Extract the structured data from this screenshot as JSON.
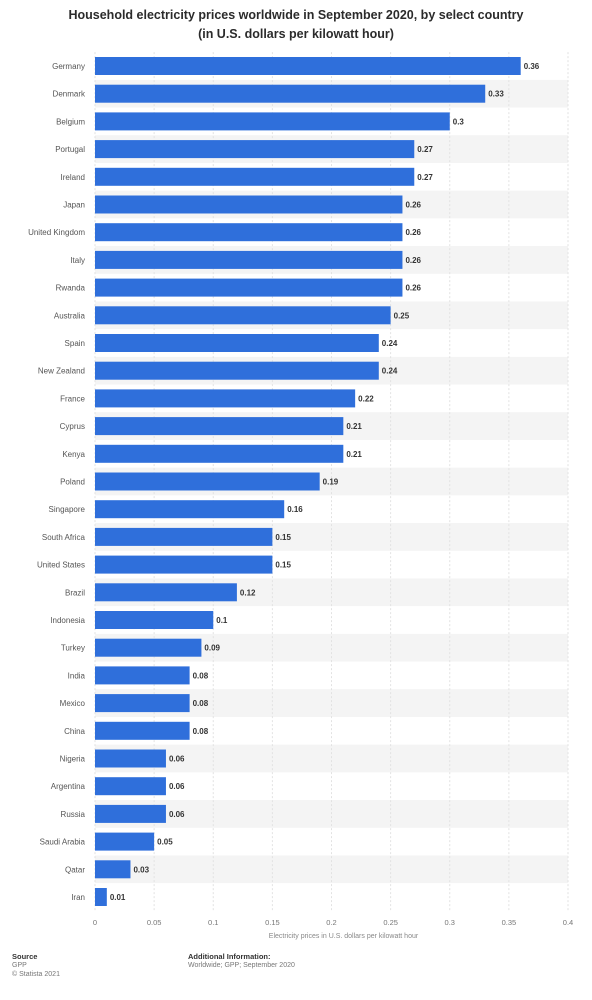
{
  "chart_data": {
    "type": "bar",
    "orientation": "horizontal",
    "title": "Household electricity prices worldwide in September 2020, by select country",
    "subtitle": "(in U.S. dollars per kilowatt hour)",
    "xlabel": "Electricity prices in U.S. dollars per kilowatt hour",
    "ylabel": "",
    "xlim": [
      0,
      0.4
    ],
    "x_ticks": [
      "0",
      "0.05",
      "0.1",
      "0.15",
      "0.2",
      "0.25",
      "0.3",
      "0.35",
      "0.4"
    ],
    "grid": true,
    "bar_color": "#2f6fdb",
    "categories": [
      "Germany",
      "Denmark",
      "Belgium",
      "Portugal",
      "Ireland",
      "Japan",
      "United Kingdom",
      "Italy",
      "Rwanda",
      "Australia",
      "Spain",
      "New Zealand",
      "France",
      "Cyprus",
      "Kenya",
      "Poland",
      "Singapore",
      "South Africa",
      "United States",
      "Brazil",
      "Indonesia",
      "Turkey",
      "India",
      "Mexico",
      "China",
      "Nigeria",
      "Argentina",
      "Russia",
      "Saudi Arabia",
      "Qatar",
      "Iran"
    ],
    "values": [
      0.36,
      0.33,
      0.3,
      0.27,
      0.27,
      0.26,
      0.26,
      0.26,
      0.26,
      0.25,
      0.24,
      0.24,
      0.22,
      0.21,
      0.21,
      0.19,
      0.16,
      0.15,
      0.15,
      0.12,
      0.1,
      0.09,
      0.08,
      0.08,
      0.08,
      0.06,
      0.06,
      0.06,
      0.05,
      0.03,
      0.01
    ],
    "value_labels": [
      "0.36",
      "0.33",
      "0.3",
      "0.27",
      "0.27",
      "0.26",
      "0.26",
      "0.26",
      "0.26",
      "0.25",
      "0.24",
      "0.24",
      "0.22",
      "0.21",
      "0.21",
      "0.19",
      "0.16",
      "0.15",
      "0.15",
      "0.12",
      "0.1",
      "0.09",
      "0.08",
      "0.08",
      "0.08",
      "0.06",
      "0.06",
      "0.06",
      "0.05",
      "0.03",
      "0.01"
    ]
  },
  "footer": {
    "source_title": "Source",
    "source_name": "GPP",
    "copyright": "© Statista 2021",
    "info_title": "Additional Information:",
    "info_text": "Worldwide; GPP; September 2020"
  }
}
